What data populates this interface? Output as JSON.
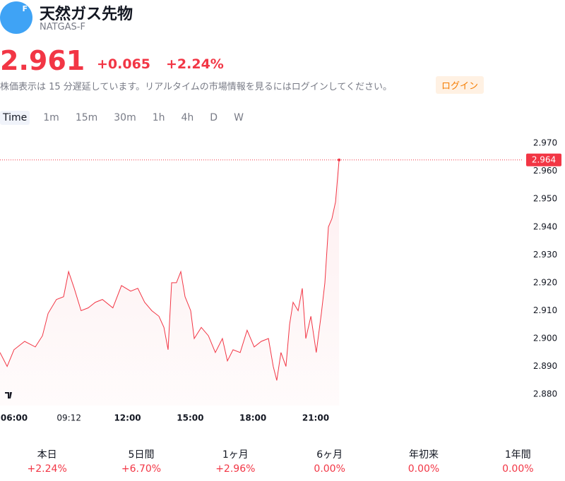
{
  "header": {
    "title": "天然ガス先物",
    "ticker": "NATGAS-F",
    "icon_letter": "F"
  },
  "quote": {
    "price": "2.961",
    "change": "+0.065",
    "change_percent": "+2.24%",
    "delay_notice": "株価表示は 15 分遅延しています。リアルタイムの市場情報を見るにはログインしてください。",
    "login": "ログイン"
  },
  "timeframes": [
    "Time",
    "1m",
    "15m",
    "30m",
    "1h",
    "4h",
    "D",
    "W"
  ],
  "chart_data": {
    "type": "line",
    "color": "#f23645",
    "x": [
      5.9,
      6.24,
      6.57,
      7.08,
      7.59,
      7.93,
      8.2,
      8.6,
      8.94,
      9.18,
      9.45,
      9.78,
      10.12,
      10.46,
      10.8,
      11.3,
      11.71,
      12.15,
      12.49,
      12.82,
      13.16,
      13.5,
      13.74,
      13.94,
      14.11,
      14.34,
      14.55,
      14.75,
      15.02,
      15.19,
      15.53,
      15.87,
      16.2,
      16.54,
      16.78,
      17.05,
      17.39,
      17.72,
      18.06,
      18.4,
      18.74,
      18.97,
      19.14,
      19.34,
      19.58,
      19.75,
      19.92,
      20.16,
      20.36,
      20.53,
      20.77,
      21.03,
      21.27,
      21.44,
      21.61,
      21.78,
      21.95,
      22.12
    ],
    "values": [
      2.895,
      2.89,
      2.896,
      2.899,
      2.897,
      2.901,
      2.909,
      2.914,
      2.915,
      2.924,
      2.918,
      2.91,
      2.911,
      2.913,
      2.914,
      2.911,
      2.919,
      2.917,
      2.918,
      2.913,
      2.91,
      2.908,
      2.904,
      2.896,
      2.92,
      2.92,
      2.924,
      2.915,
      2.91,
      2.9,
      2.904,
      2.901,
      2.895,
      2.9,
      2.892,
      2.896,
      2.895,
      2.903,
      2.897,
      2.899,
      2.9,
      2.89,
      2.885,
      2.895,
      2.89,
      2.905,
      2.913,
      2.91,
      2.918,
      2.9,
      2.908,
      2.895,
      2.909,
      2.92,
      2.94,
      2.943,
      2.949,
      2.964
    ],
    "last_value": 2.964,
    "xlim": [
      5.9,
      30.9
    ],
    "ylim": [
      2.876,
      2.9733
    ],
    "xticks": [
      {
        "value": 6,
        "label": "06:00"
      },
      {
        "value": 9.2,
        "label": "09:12"
      },
      {
        "value": 12,
        "label": "12:00"
      },
      {
        "value": 15,
        "label": "15:00"
      },
      {
        "value": 18,
        "label": "18:00"
      },
      {
        "value": 21,
        "label": "21:00"
      }
    ],
    "yticks": [
      {
        "value": 2.97,
        "label": "2.970"
      },
      {
        "value": 2.96,
        "label": "2.960"
      },
      {
        "value": 2.95,
        "label": "2.950"
      },
      {
        "value": 2.94,
        "label": "2.940"
      },
      {
        "value": 2.93,
        "label": "2.930"
      },
      {
        "value": 2.92,
        "label": "2.920"
      },
      {
        "value": 2.91,
        "label": "2.910"
      },
      {
        "value": 2.9,
        "label": "2.900"
      },
      {
        "value": 2.89,
        "label": "2.890"
      },
      {
        "value": 2.88,
        "label": "2.880"
      }
    ]
  },
  "performance": [
    {
      "label": "本日",
      "value": "+2.24%"
    },
    {
      "label": "5日間",
      "value": "+6.70%"
    },
    {
      "label": "1ヶ月",
      "value": "+2.96%"
    },
    {
      "label": "6ヶ月",
      "value": "0.00%"
    },
    {
      "label": "年初来",
      "value": "0.00%"
    },
    {
      "label": "1年間",
      "value": "0.00%"
    }
  ]
}
